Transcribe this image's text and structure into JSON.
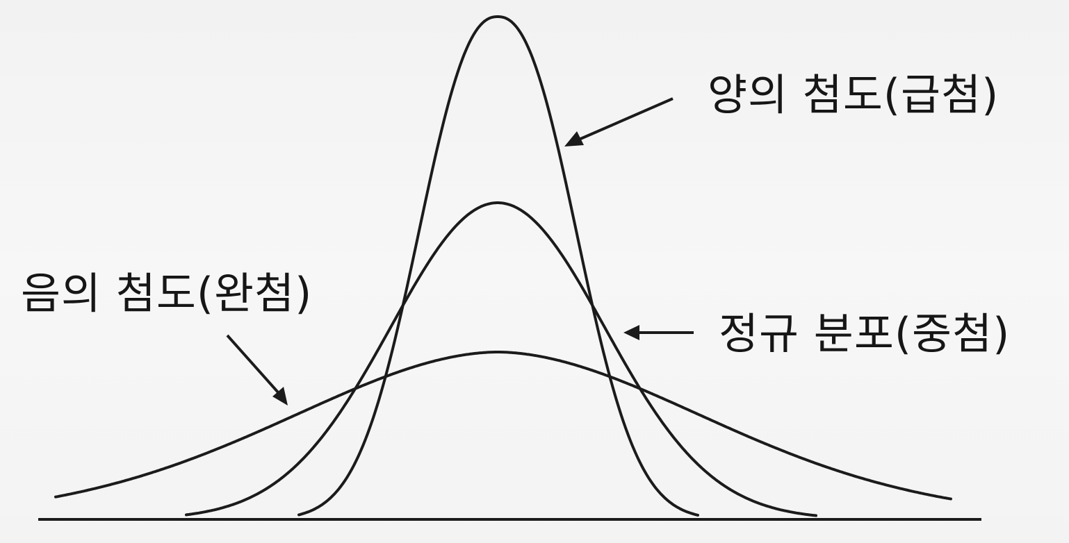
{
  "labels": {
    "positive_kurtosis": "양의 첨도(급첨)",
    "normal_distribution": "정규 분포(중첨)",
    "negative_kurtosis": "음의 첨도(완첨)"
  },
  "colors": {
    "ink": "#1b1b1b",
    "paper": "#f4f4f4"
  }
}
